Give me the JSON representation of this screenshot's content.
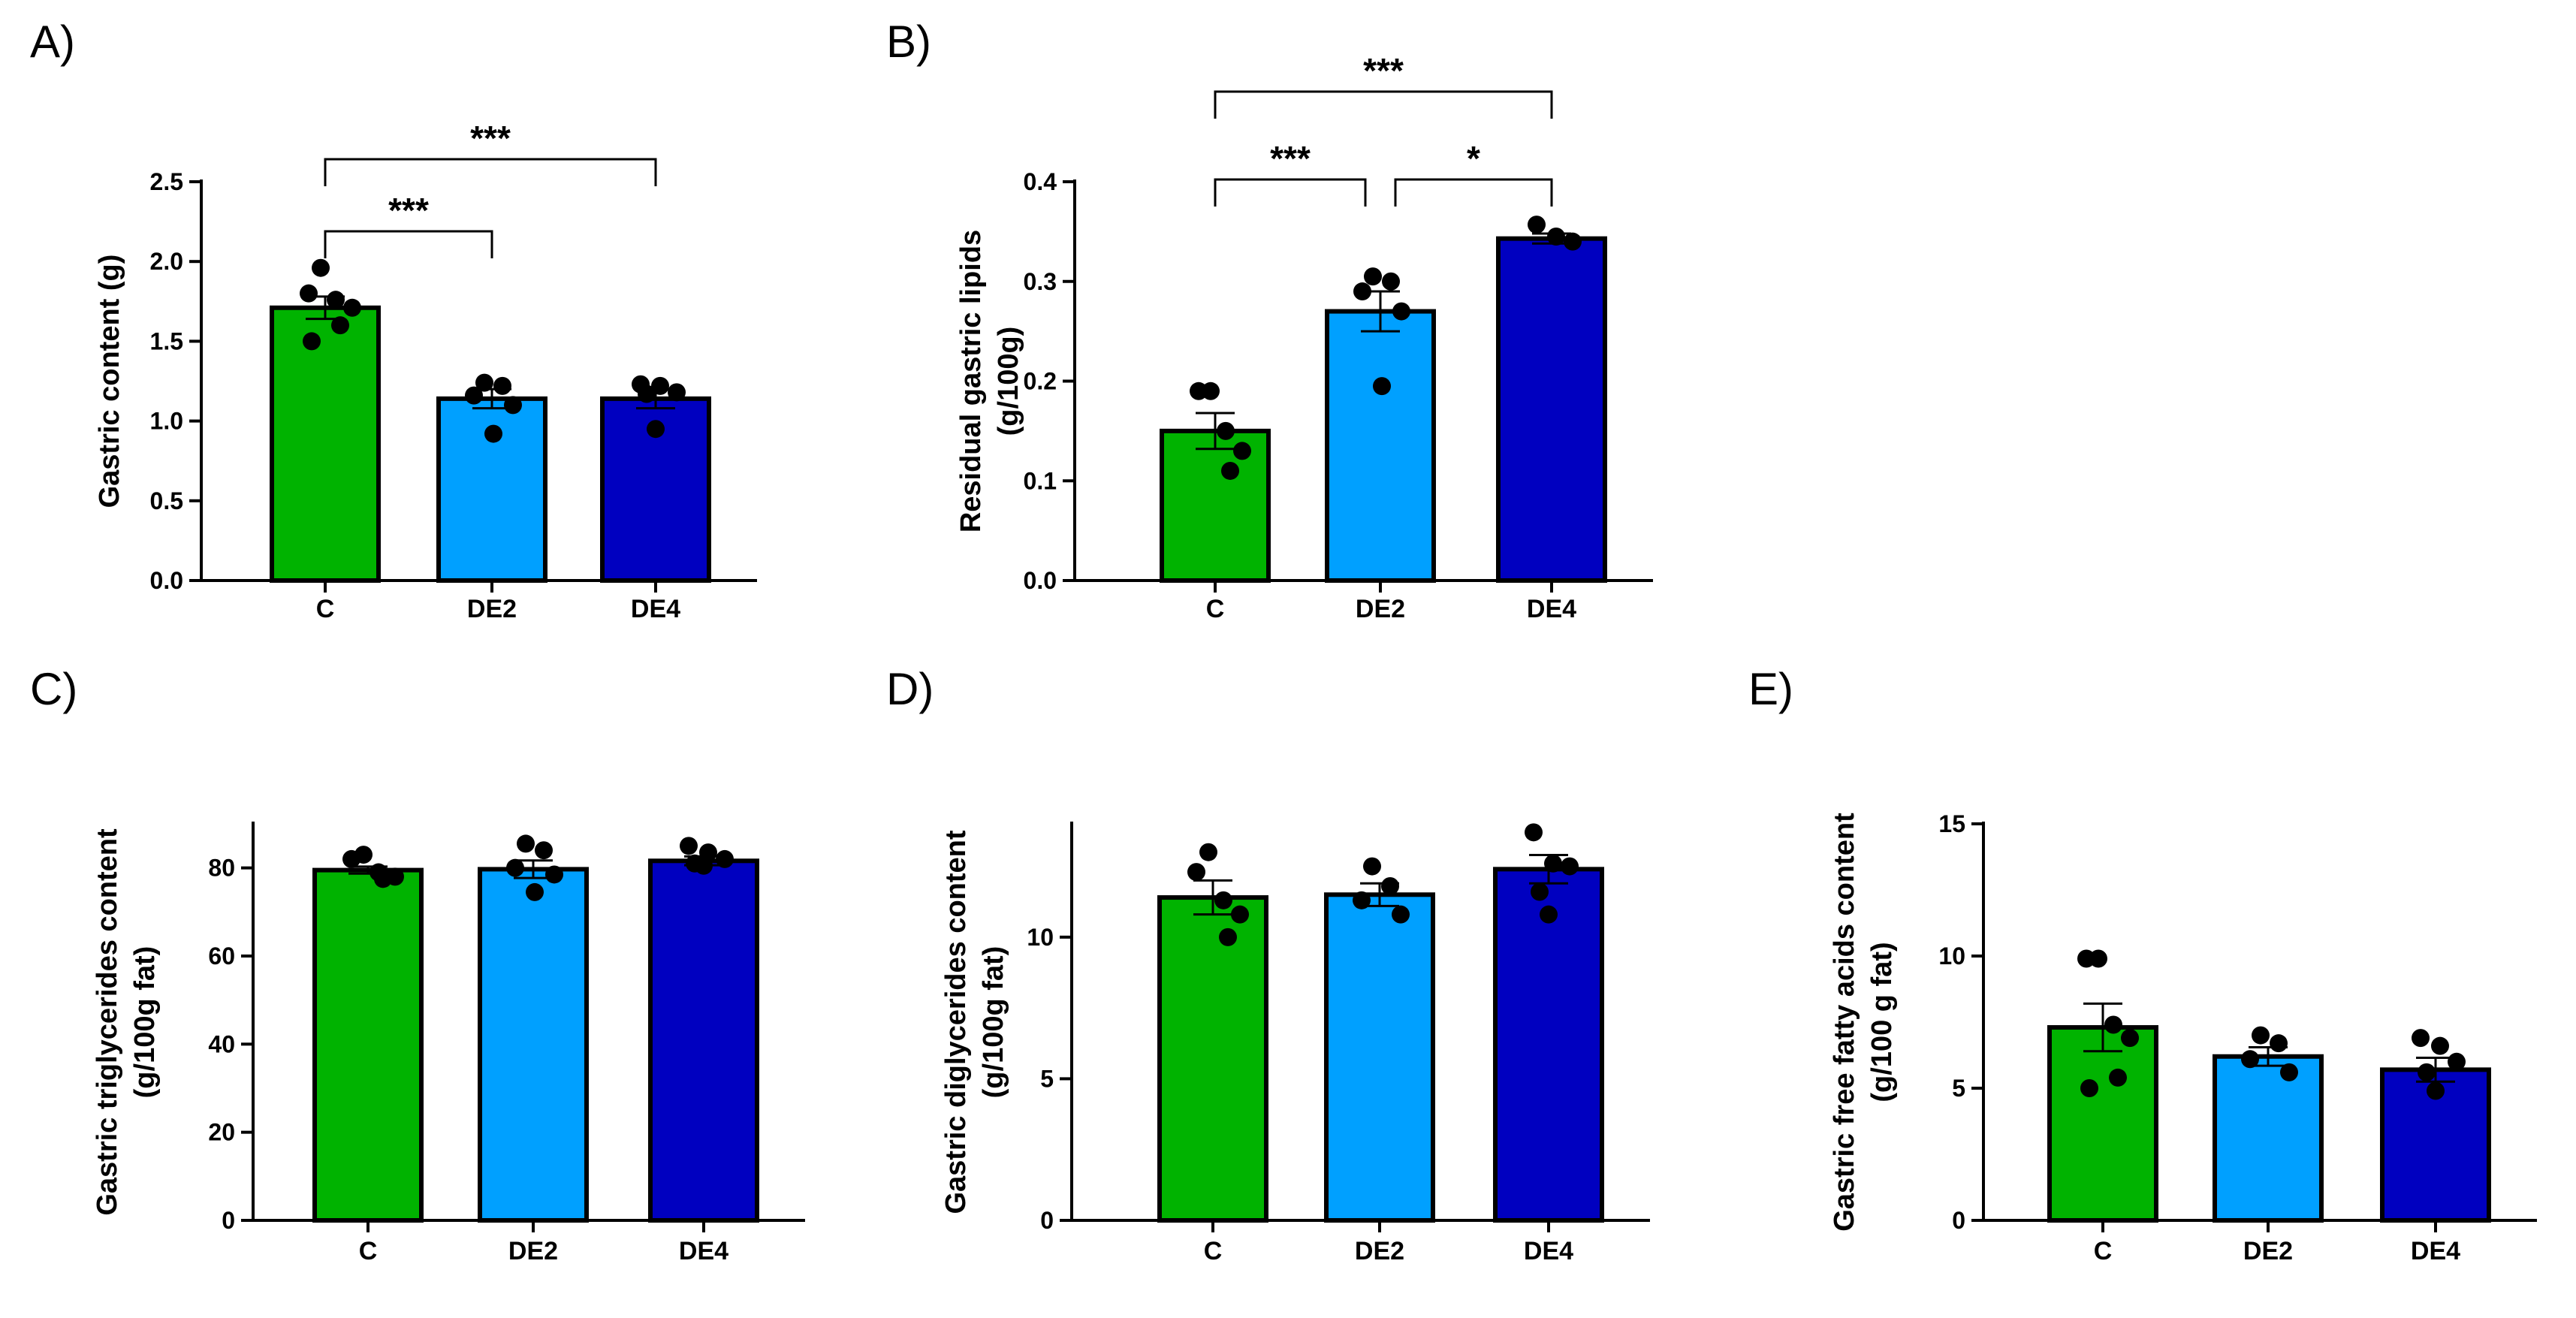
{
  "figure": {
    "background": "#ffffff"
  },
  "colors": {
    "C": "#00b300",
    "DE2": "#00a0ff",
    "DE4": "#0000c0"
  },
  "chart_data": [
    {
      "type": "bar",
      "panel": "A)",
      "ylabel_lines": [
        "Gastric content (g)"
      ],
      "categories": [
        "C",
        "DE2",
        "DE4"
      ],
      "values": [
        1.71,
        1.14,
        1.14
      ],
      "errors": [
        0.07,
        0.06,
        0.06
      ],
      "points": [
        [
          1.96,
          1.8,
          1.76,
          1.71,
          1.6,
          1.5
        ],
        [
          1.24,
          1.22,
          1.16,
          1.1,
          0.92
        ],
        [
          1.23,
          1.22,
          1.18,
          1.17,
          0.95
        ]
      ],
      "ylim": [
        0,
        2.5
      ],
      "yticks": [
        "0.0",
        "0.5",
        "1.0",
        "1.5",
        "2.0",
        "2.5"
      ],
      "significance": [
        {
          "from": 0,
          "to": 1,
          "label": "***"
        },
        {
          "from": 0,
          "to": 2,
          "label": "***"
        }
      ]
    },
    {
      "type": "bar",
      "panel": "B)",
      "ylabel_lines": [
        "Residual gastric lipids",
        "(g/100g)"
      ],
      "categories": [
        "C",
        "DE2",
        "DE4"
      ],
      "values": [
        0.15,
        0.27,
        0.343
      ],
      "errors": [
        0.018,
        0.02,
        0.005
      ],
      "points": [
        [
          0.19,
          0.19,
          0.15,
          0.13,
          0.11
        ],
        [
          0.305,
          0.3,
          0.29,
          0.27,
          0.195
        ],
        [
          0.357,
          0.345,
          0.34
        ]
      ],
      "ylim": [
        0,
        0.4
      ],
      "yticks": [
        "0.0",
        "0.1",
        "0.2",
        "0.3",
        "0.4"
      ],
      "significance": [
        {
          "from": 0,
          "to": 1,
          "label": "***"
        },
        {
          "from": 1,
          "to": 2,
          "label": "*"
        },
        {
          "from": 0,
          "to": 2,
          "label": "***"
        }
      ]
    },
    {
      "type": "bar",
      "panel": "C)",
      "ylabel_lines": [
        "Gastric triglycerides content",
        "(g/100g fat)"
      ],
      "categories": [
        "C",
        "DE2",
        "DE4"
      ],
      "values": [
        79.5,
        79.7,
        81.6
      ],
      "errors": [
        0.8,
        2.0,
        1.0
      ],
      "points": [
        [
          83.0,
          82.0,
          79.0,
          78.0,
          77.5
        ],
        [
          85.5,
          84.0,
          80.0,
          78.5,
          74.5
        ],
        [
          85.0,
          83.5,
          82.0,
          81.0,
          80.5
        ]
      ],
      "ylim": [
        0,
        90
      ],
      "yticks": [
        "0",
        "20",
        "40",
        "60",
        "80"
      ],
      "significance": []
    },
    {
      "type": "bar",
      "panel": "D)",
      "ylabel_lines": [
        "Gastric diglycerides content",
        "(g/100g fat)"
      ],
      "categories": [
        "C",
        "DE2",
        "DE4"
      ],
      "values": [
        11.4,
        11.5,
        12.4
      ],
      "errors": [
        0.6,
        0.4,
        0.5
      ],
      "points": [
        [
          13.0,
          12.3,
          11.3,
          10.8,
          10.0
        ],
        [
          12.5,
          11.8,
          11.3,
          10.8
        ],
        [
          13.7,
          12.6,
          12.5,
          11.6,
          10.8
        ]
      ],
      "ylim": [
        0,
        14
      ],
      "yticks": [
        "0",
        "5",
        "10"
      ],
      "significance": []
    },
    {
      "type": "bar",
      "panel": "E)",
      "ylabel_lines": [
        "Gastric free fatty acids content",
        "(g/100 g fat)"
      ],
      "categories": [
        "C",
        "DE2",
        "DE4"
      ],
      "values": [
        7.3,
        6.2,
        5.7
      ],
      "errors": [
        0.9,
        0.35,
        0.45
      ],
      "points": [
        [
          9.9,
          9.9,
          7.4,
          6.9,
          5.4,
          5.0
        ],
        [
          7.0,
          6.7,
          6.1,
          5.6
        ],
        [
          6.9,
          6.6,
          6.0,
          5.6,
          4.9
        ]
      ],
      "ylim": [
        0,
        15
      ],
      "yticks": [
        "0",
        "5",
        "10",
        "15"
      ],
      "significance": []
    }
  ]
}
